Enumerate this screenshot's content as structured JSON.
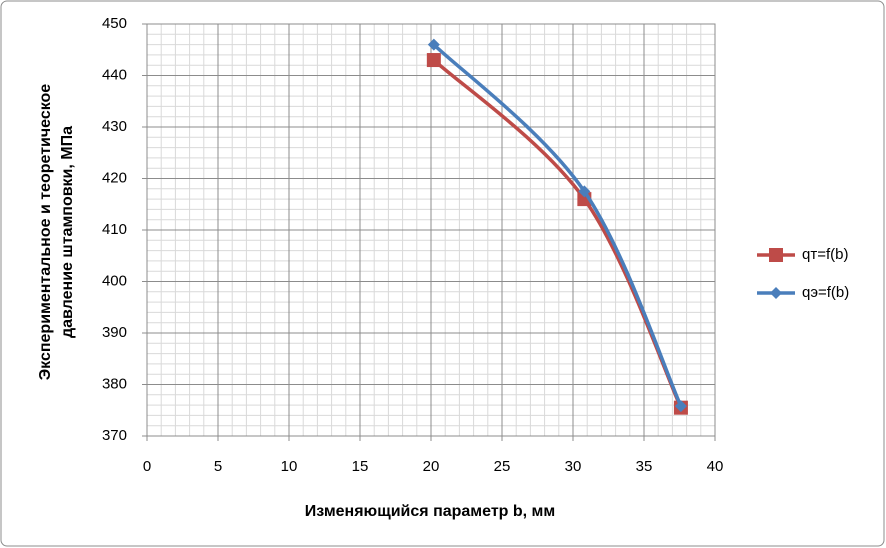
{
  "chart_data": {
    "type": "scatter-smooth",
    "xlabel": "Изменяющийся параметр b, мм",
    "ylabel": [
      "Экспериментальное и теоретическое",
      "давление штамповки, МПа"
    ],
    "xlim": [
      0,
      40
    ],
    "xticks": [
      0,
      5,
      10,
      15,
      20,
      25,
      30,
      35,
      40
    ],
    "ylim": [
      370,
      450
    ],
    "yticks": [
      370,
      380,
      390,
      400,
      410,
      420,
      430,
      440,
      450
    ],
    "grid": true,
    "minor_grid": {
      "x_step": 1,
      "y_step": 2
    },
    "legend": "right",
    "series": [
      {
        "name": "qт=f(b)",
        "color": "#be4b48",
        "marker": "square",
        "x": [
          20.2,
          30.8,
          37.6
        ],
        "values": [
          443,
          416,
          375.5
        ]
      },
      {
        "name": "qэ=f(b)",
        "color": "#4a7ebb",
        "marker": "diamond",
        "x": [
          20.2,
          30.8,
          37.6
        ],
        "values": [
          446,
          417.5,
          375.8
        ]
      }
    ]
  }
}
